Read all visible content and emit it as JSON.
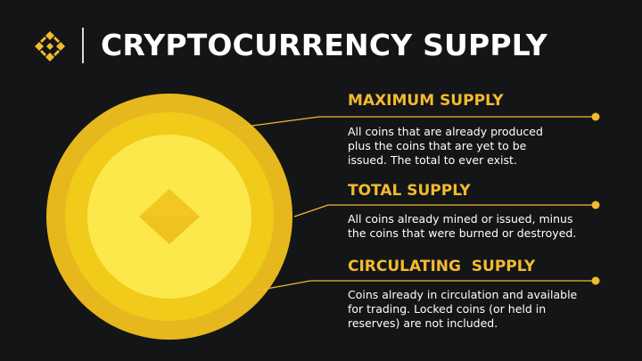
{
  "title": "CRYPTOCURRENCY SUPPLY",
  "colors": {
    "background": "#141517",
    "accent": "#f3ba2f",
    "coin_outer": "#e6b81d",
    "coin_mid": "#f0cb1a",
    "coin_inner": "#fce84a",
    "text": "#ffffff"
  },
  "logo": {
    "icon": "binance-logo-icon"
  },
  "supply_types": [
    {
      "heading": "MAXIMUM SUPPLY",
      "lines": [
        "All coins that are already produced",
        "plus the coins that are yet to be",
        "issued. The total to ever exist."
      ]
    },
    {
      "heading": "TOTAL SUPPLY",
      "lines": [
        "All coins already mined or issued, minus",
        "the coins that were burned or destroyed."
      ]
    },
    {
      "heading": "CIRCULATING  SUPPLY",
      "lines": [
        "Coins already in circulation and available",
        "for trading. Locked coins (or held in",
        "reserves) are not included."
      ]
    }
  ]
}
